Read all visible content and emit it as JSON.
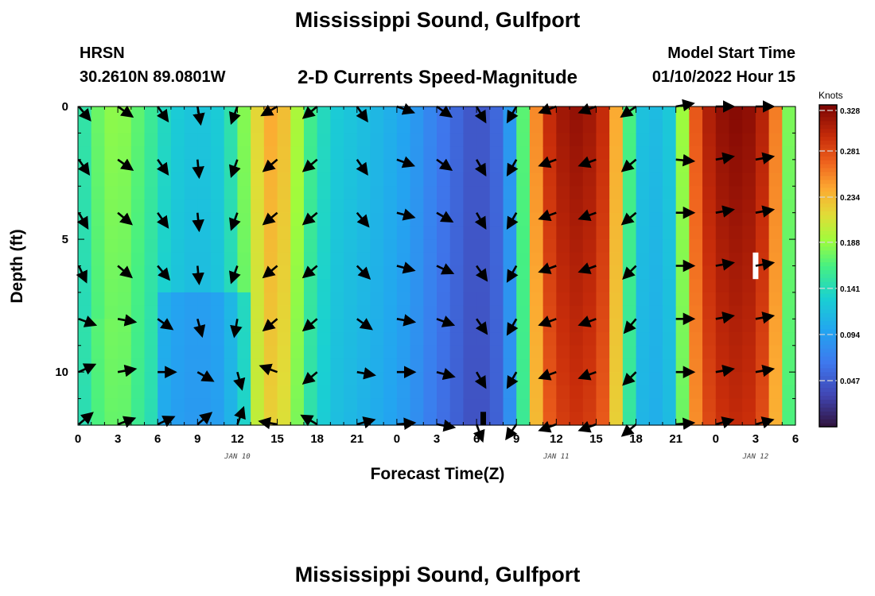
{
  "header": {
    "title": "Mississippi Sound, Gulfport",
    "station": "HRSN",
    "coords": "30.2610N  89.0801W",
    "subtitle": "2-D Currents Speed-Magnitude",
    "model_start_label": "Model Start Time",
    "model_start_value": "01/10/2022 Hour 15",
    "footer_title": "Mississippi Sound, Gulfport"
  },
  "chart_data": {
    "type": "heatmap",
    "title": "2-D Currents Speed-Magnitude",
    "xlabel": "Forecast Time(Z)",
    "ylabel": "Depth (ft)",
    "x_range_hours": [
      0,
      54
    ],
    "y_range_ft": [
      0,
      12
    ],
    "x_tick_labels": [
      "0",
      "3",
      "6",
      "9",
      "12",
      "15",
      "18",
      "21",
      "0",
      "3",
      "6",
      "9",
      "12",
      "15",
      "18",
      "21",
      "0",
      "3",
      "6"
    ],
    "date_labels": [
      {
        "label": "JAN 10",
        "hour": 12
      },
      {
        "label": "JAN 11",
        "hour": 36
      },
      {
        "label": "JAN 12",
        "hour": 51
      }
    ],
    "y_tick_labels": [
      {
        "label": "0",
        "depth": 0
      },
      {
        "label": "5",
        "depth": 5
      },
      {
        "label": "10",
        "depth": 10
      }
    ],
    "colorbar": {
      "units": "Knots",
      "min": 0.0,
      "max": 0.328,
      "tick_labels": [
        "0.047",
        "0.094",
        "0.141",
        "0.188",
        "0.234",
        "0.281",
        "0.328"
      ],
      "tick_values": [
        0.047,
        0.094,
        0.141,
        0.188,
        0.234,
        0.281,
        0.328
      ]
    },
    "speed_profile_surface": [
      {
        "hour": 0,
        "speed": 0.13
      },
      {
        "hour": 1,
        "speed": 0.17
      },
      {
        "hour": 3,
        "speed": 0.19
      },
      {
        "hour": 5,
        "speed": 0.165
      },
      {
        "hour": 7,
        "speed": 0.13
      },
      {
        "hour": 9,
        "speed": 0.12
      },
      {
        "hour": 11,
        "speed": 0.13
      },
      {
        "hour": 13,
        "speed": 0.2
      },
      {
        "hour": 14,
        "speed": 0.24
      },
      {
        "hour": 15,
        "speed": 0.245
      },
      {
        "hour": 16,
        "speed": 0.22
      },
      {
        "hour": 17,
        "speed": 0.17
      },
      {
        "hour": 19,
        "speed": 0.13
      },
      {
        "hour": 21,
        "speed": 0.12
      },
      {
        "hour": 23,
        "speed": 0.11
      },
      {
        "hour": 25,
        "speed": 0.095
      },
      {
        "hour": 27,
        "speed": 0.07
      },
      {
        "hour": 29,
        "speed": 0.05
      },
      {
        "hour": 30,
        "speed": 0.04
      },
      {
        "hour": 32,
        "speed": 0.06
      },
      {
        "hour": 33,
        "speed": 0.12
      },
      {
        "hour": 34,
        "speed": 0.22
      },
      {
        "hour": 35,
        "speed": 0.29
      },
      {
        "hour": 37,
        "speed": 0.32
      },
      {
        "hour": 39,
        "speed": 0.31
      },
      {
        "hour": 40,
        "speed": 0.285
      },
      {
        "hour": 41,
        "speed": 0.2
      },
      {
        "hour": 42,
        "speed": 0.13
      },
      {
        "hour": 43,
        "speed": 0.11
      },
      {
        "hour": 45,
        "speed": 0.13
      },
      {
        "hour": 46,
        "speed": 0.25
      },
      {
        "hour": 47,
        "speed": 0.3
      },
      {
        "hour": 49,
        "speed": 0.325
      },
      {
        "hour": 51,
        "speed": 0.318
      },
      {
        "hour": 52,
        "speed": 0.29
      },
      {
        "hour": 53,
        "speed": 0.23
      },
      {
        "hour": 54,
        "speed": 0.13
      }
    ],
    "vector_hours": [
      0,
      3,
      6,
      9,
      12,
      15,
      18,
      21,
      24,
      27,
      30,
      33,
      36,
      39,
      42,
      45,
      48,
      51
    ],
    "vector_depths_ft": [
      0,
      2,
      4,
      6,
      8,
      10,
      12
    ],
    "vector_directions_deg": [
      [
        -50,
        -35,
        -55,
        -80,
        -110,
        -150,
        -140,
        -55,
        -20,
        -35,
        -60,
        -120,
        -160,
        -160,
        -145,
        10,
        0,
        0
      ],
      [
        -55,
        -35,
        -55,
        -85,
        -110,
        -140,
        -140,
        -55,
        -20,
        -35,
        -60,
        -120,
        -160,
        -160,
        -140,
        -5,
        10,
        10
      ],
      [
        -60,
        -40,
        -55,
        -85,
        -110,
        -140,
        -140,
        -50,
        -15,
        -30,
        -60,
        -120,
        -160,
        -160,
        -140,
        0,
        10,
        10
      ],
      [
        -65,
        -40,
        -50,
        -85,
        -110,
        -140,
        -140,
        -45,
        -15,
        -25,
        -55,
        -120,
        -160,
        -160,
        -135,
        0,
        10,
        10
      ],
      [
        -20,
        -10,
        -35,
        -75,
        -100,
        -140,
        -140,
        -35,
        -10,
        -20,
        -55,
        -120,
        -160,
        -160,
        -130,
        0,
        10,
        10
      ],
      [
        25,
        10,
        0,
        -30,
        -75,
        160,
        -140,
        -10,
        0,
        -15,
        -60,
        -120,
        -160,
        -160,
        -135,
        0,
        10,
        10
      ],
      [
        40,
        20,
        25,
        40,
        70,
        170,
        150,
        15,
        5,
        -10,
        -70,
        -125,
        -160,
        -160,
        -140,
        5,
        15,
        15
      ]
    ],
    "missing_cells": [
      {
        "hour": 51,
        "depth_range_ft": [
          5.5,
          6.5
        ]
      },
      {
        "hour": 30.5,
        "depth_range_ft": [
          11.5,
          12
        ]
      }
    ]
  }
}
